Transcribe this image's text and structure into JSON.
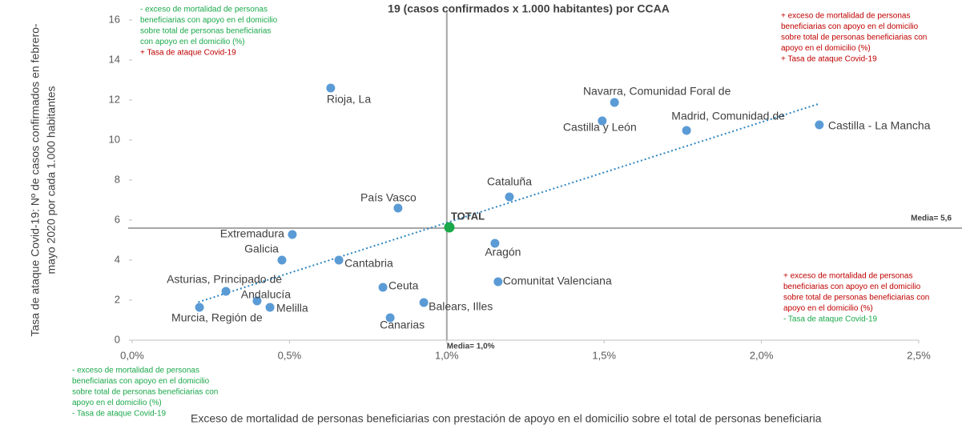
{
  "chart_data": {
    "type": "scatter",
    "title": "19 (casos confirmados x 1.000 habitantes) por CCAA",
    "x_label": "Exceso de mortalidad de personas beneficiarias con prestación de apoyo en el domicilio sobre el total de personas beneficiaria",
    "y_label": [
      "Tasa de ataque Covid-19: Nº de casos confirmados en febrero-",
      "mayo 2020 por cada 1.000 habitantes"
    ],
    "point_labels": [
      "Rioja, La",
      "Navarra, Comunidad Foral de",
      "Castilla y León",
      "Madrid, Comunidad de",
      "Castilla - La Mancha",
      "Cataluña",
      "País Vasco",
      "Extremadura",
      "Aragón",
      "Galicia",
      "Cantabria",
      "Comunitat Valenciana",
      "Ceuta",
      "Asturias, Principado de",
      "Andalucía",
      "Melilla",
      "Murcia, Región de",
      "Balears, Illes",
      "Canarias"
    ],
    "x": [
      0.631,
      1.533,
      1.494,
      1.762,
      2.184,
      1.199,
      0.845,
      0.509,
      1.153,
      0.476,
      0.657,
      1.163,
      0.797,
      0.298,
      0.397,
      0.438,
      0.214,
      0.927,
      0.82
    ],
    "values": [
      12.6,
      11.88,
      10.96,
      10.48,
      10.76,
      7.16,
      6.6,
      5.28,
      4.84,
      4.0,
      4.0,
      2.92,
      2.64,
      2.44,
      1.96,
      1.64,
      1.64,
      1.88,
      1.12
    ],
    "color": "#5b9bd5",
    "total": {
      "label": "TOTAL",
      "x": 1.008,
      "y": 5.64,
      "color": "#1aa84a"
    },
    "x_mean": {
      "value": 1.0,
      "label": "Media= 1,0%"
    },
    "y_mean": {
      "value": 5.6,
      "label": "Media= 5,6"
    },
    "trendline": {
      "x": [
        0.21,
        2.18
      ],
      "y": [
        1.9,
        11.8
      ],
      "color": "#2e86c1"
    },
    "xlim": [
      0,
      2.5
    ],
    "xticks": [
      {
        "value": 0,
        "label": "0,0%"
      },
      {
        "value": 0.5,
        "label": "0,5%"
      },
      {
        "value": 1.0,
        "label": "1,0%"
      },
      {
        "value": 1.5,
        "label": "1,5%"
      },
      {
        "value": 2.0,
        "label": "2,0%"
      },
      {
        "value": 2.5,
        "label": "2,5%"
      }
    ],
    "ylim": [
      0,
      16
    ],
    "yticks": [
      0,
      2,
      4,
      6,
      8,
      10,
      12,
      14,
      16
    ],
    "annotations": [
      {
        "lines": [
          {
            "text": "- exceso de mortalidad de personas",
            "color": "#1aa84a"
          },
          {
            "text": "beneficiarias con apoyo en el domicilio",
            "color": "#1aa84a"
          },
          {
            "text": "sobre total de personas beneficiarias",
            "color": "#1aa84a"
          },
          {
            "text": "con apoyo en el domicilio (%)",
            "color": "#1aa84a"
          },
          {
            "text": "+ Tasa de ataque Covid-19",
            "color": "#c00000"
          }
        ]
      },
      {
        "lines": [
          {
            "text": "+ exceso de mortalidad de personas",
            "color": "#c00000"
          },
          {
            "text": "beneficiarias con apoyo en el domicilio",
            "color": "#c00000"
          },
          {
            "text": "sobre total de personas beneficiarias con",
            "color": "#c00000"
          },
          {
            "text": "apoyo en el domicilio (%)",
            "color": "#c00000"
          },
          {
            "text": "+ Tasa de ataque Covid-19",
            "color": "#c00000"
          }
        ]
      },
      {
        "lines": [
          {
            "text": "+ exceso de mortalidad de personas",
            "color": "#c00000"
          },
          {
            "text": "beneficiarias con apoyo en el domicilio",
            "color": "#c00000"
          },
          {
            "text": "sobre total de personas beneficiarias con",
            "color": "#c00000"
          },
          {
            "text": "apoyo en el domicilio (%)",
            "color": "#c00000"
          },
          {
            "text": "- Tasa de ataque Covid-19",
            "color": "#1aa84a"
          }
        ]
      },
      {
        "lines": [
          {
            "text": "- exceso de mortalidad de personas",
            "color": "#1aa84a"
          },
          {
            "text": "beneficiarias con apoyo en el domicilio",
            "color": "#1aa84a"
          },
          {
            "text": "sobre total de personas beneficiarias con",
            "color": "#1aa84a"
          },
          {
            "text": "apoyo en el domicilio (%)",
            "color": "#1aa84a"
          },
          {
            "text": "- Tasa de ataque Covid-19",
            "color": "#1aa84a"
          }
        ]
      }
    ]
  }
}
